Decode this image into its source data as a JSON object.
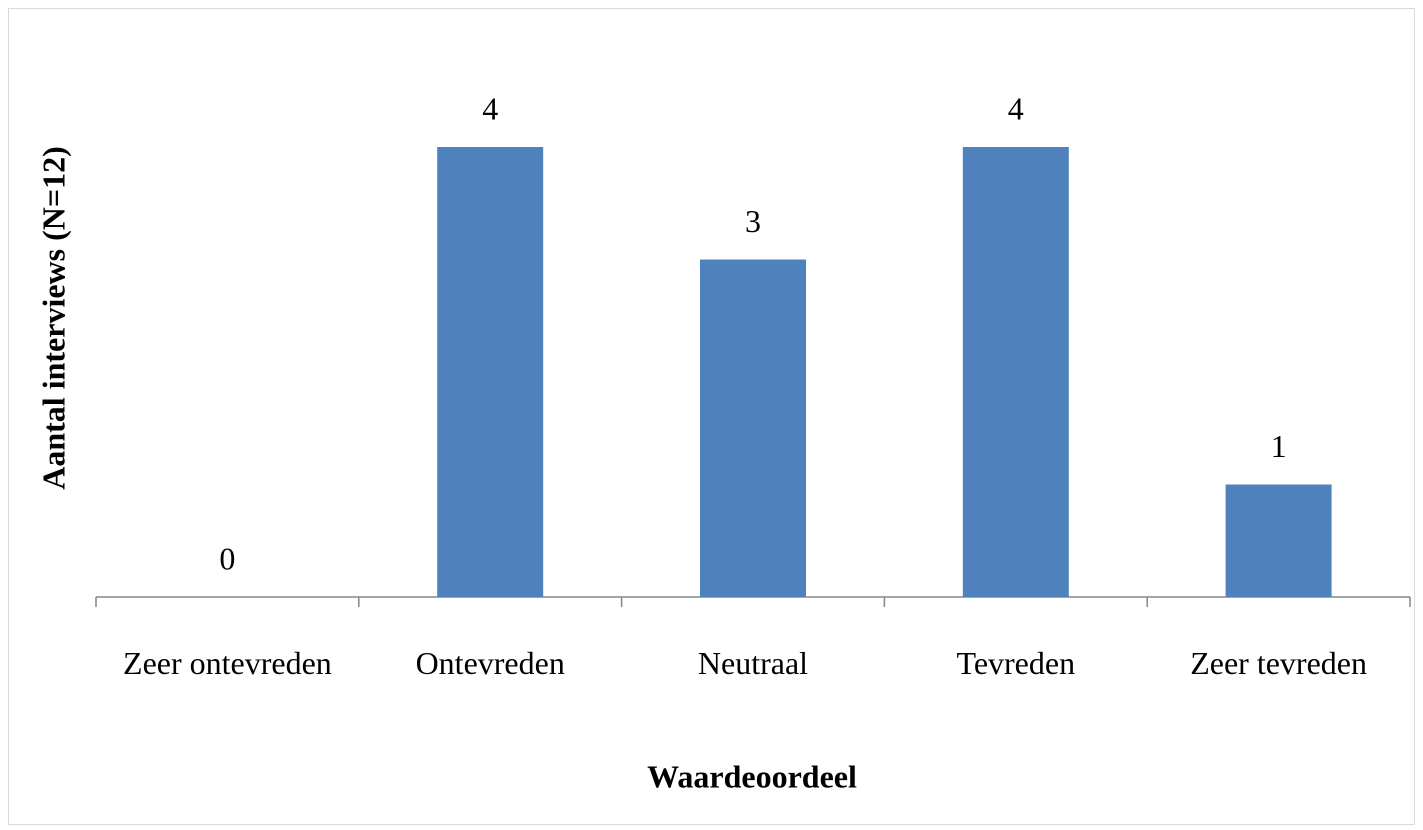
{
  "chart_data": {
    "type": "bar",
    "x_label": "Waardeoordeel",
    "y_label": "Aantal interviews (N=12)",
    "categories": [
      "Zeer ontevreden",
      "Ontevreden",
      "Neutraal",
      "Tevreden",
      "Zeer tevreden"
    ],
    "values": [
      0,
      4,
      3,
      4,
      1
    ],
    "color": "#4f81bd",
    "ylim": [
      0,
      5
    ],
    "data_labels": true
  }
}
